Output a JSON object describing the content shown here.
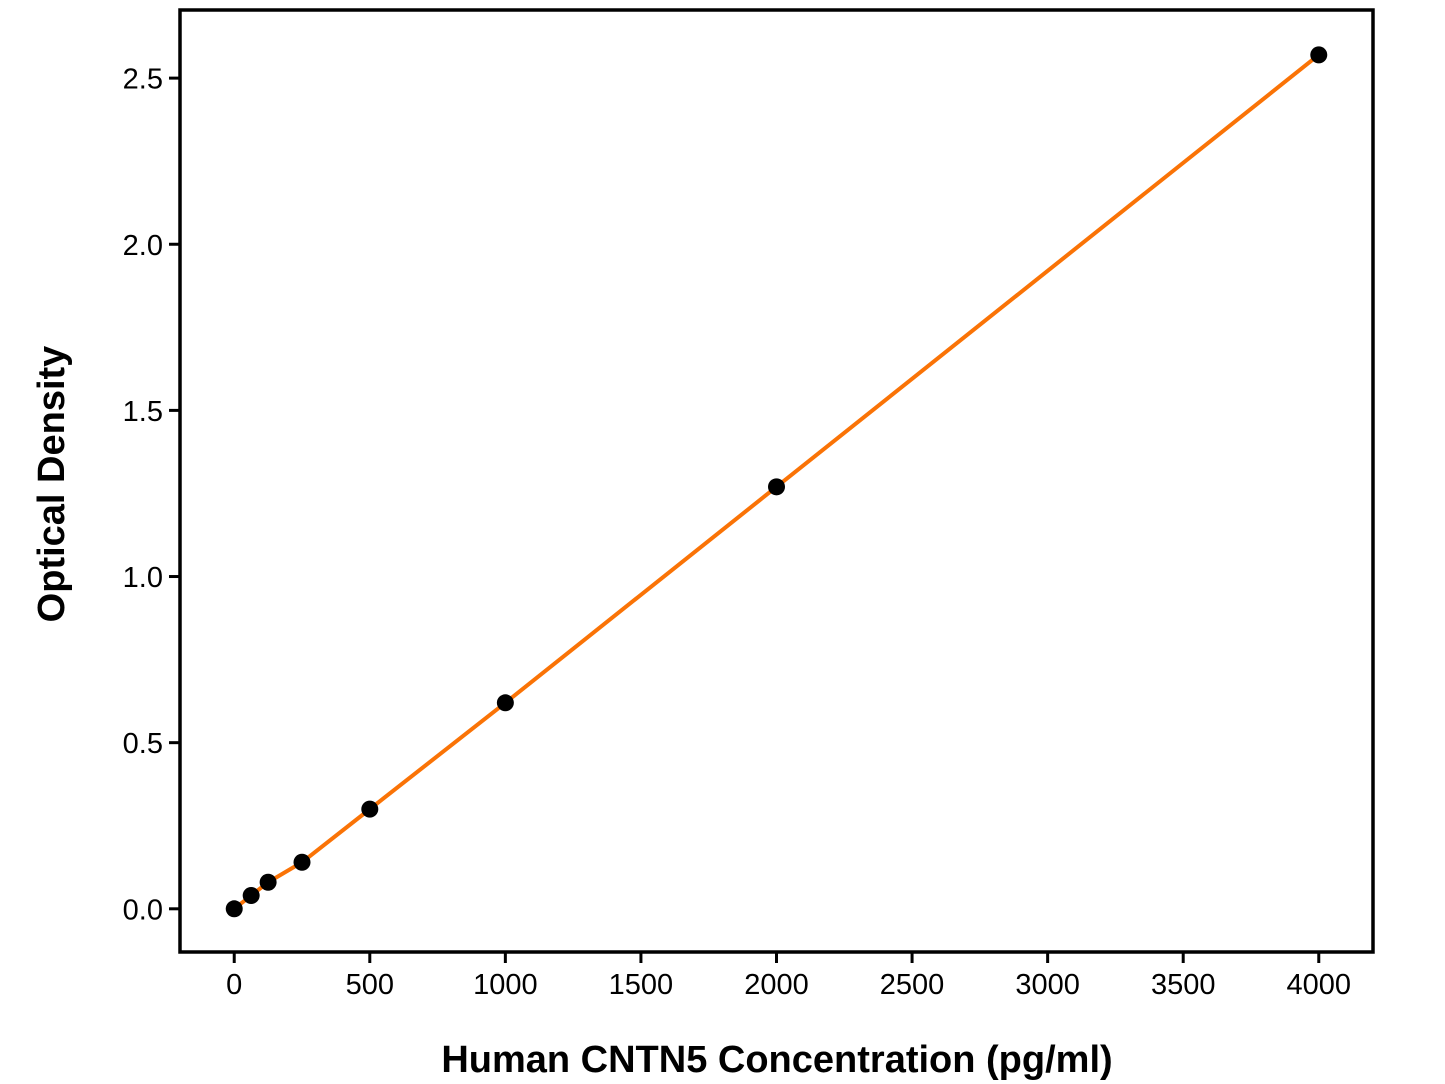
{
  "figure": {
    "background": "#ffffff"
  },
  "chart_data": {
    "type": "line",
    "title": "",
    "xlabel": "Human CNTN5 Concentration (pg/ml)",
    "ylabel": "Optical Density",
    "points": [
      {
        "x": 0,
        "y": 0.0
      },
      {
        "x": 62.5,
        "y": 0.04
      },
      {
        "x": 125,
        "y": 0.08
      },
      {
        "x": 250,
        "y": 0.14
      },
      {
        "x": 500,
        "y": 0.3
      },
      {
        "x": 1000,
        "y": 0.62
      },
      {
        "x": 2000,
        "y": 1.27
      },
      {
        "x": 4000,
        "y": 2.57
      }
    ],
    "x_tick_values": [
      0,
      500,
      1000,
      1500,
      2000,
      2500,
      3000,
      3500,
      4000
    ],
    "x_tick_labels": [
      "0",
      "500",
      "1000",
      "1500",
      "2000",
      "2500",
      "3000",
      "3500",
      "4000"
    ],
    "y_tick_values": [
      0.0,
      0.5,
      1.0,
      1.5,
      2.0,
      2.5
    ],
    "y_tick_labels": [
      "0.0",
      "0.5",
      "1.0",
      "1.5",
      "2.0",
      "2.5"
    ],
    "xlim": [
      -200,
      4200
    ],
    "ylim": [
      -0.13,
      2.705
    ],
    "grid": false,
    "legend": null,
    "line_color": "#fa7306",
    "marker_color": "#000000",
    "axis_color": "#000000"
  }
}
